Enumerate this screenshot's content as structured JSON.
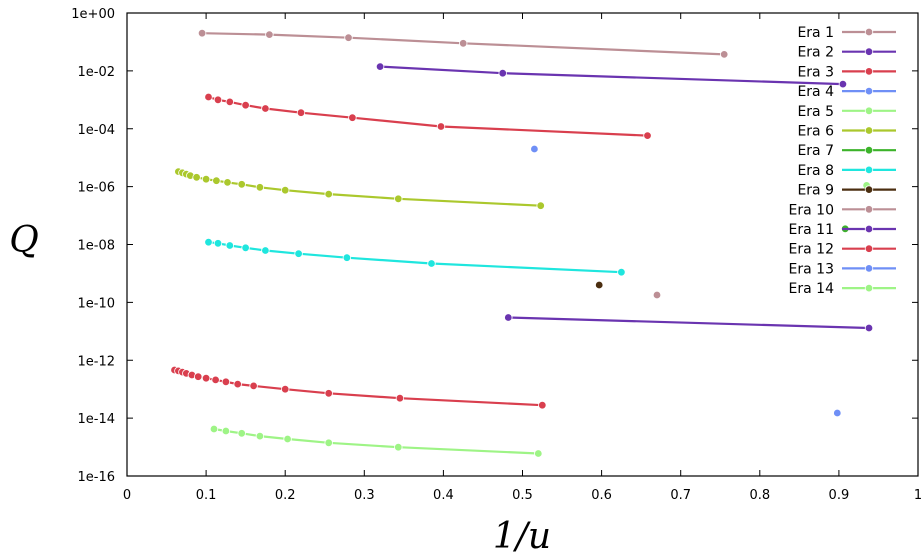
{
  "chart_data": {
    "type": "line",
    "title": "",
    "xlabel": "1/u",
    "ylabel": "Q",
    "xlim": [
      0,
      1
    ],
    "ylim_log10": [
      -16,
      0
    ],
    "y_scale": "log",
    "x_ticks": [
      0,
      0.1,
      0.2,
      0.3,
      0.4,
      0.5,
      0.6,
      0.7,
      0.8,
      0.9,
      1
    ],
    "x_tick_labels": [
      "0",
      "0.1",
      "0.2",
      "0.3",
      "0.4",
      "0.5",
      "0.6",
      "0.7",
      "0.8",
      "0.9",
      "1"
    ],
    "y_ticks_log10": [
      0,
      -2,
      -4,
      -6,
      -8,
      -10,
      -12,
      -14,
      -16
    ],
    "y_tick_labels": [
      "1e+00",
      "1e-02",
      "1e-04",
      "1e-06",
      "1e-08",
      "1e-10",
      "1e-12",
      "1e-14",
      "1e-16"
    ],
    "legend_position": "top-right",
    "series": [
      {
        "name": "Era 1",
        "color": "#bc8f95",
        "points": [
          [
            0.095,
            0.2
          ],
          [
            0.18,
            0.18
          ],
          [
            0.28,
            0.14
          ],
          [
            0.425,
            0.09
          ],
          [
            0.755,
            0.037
          ]
        ]
      },
      {
        "name": "Era 2",
        "color": "#6a34b0",
        "points": [
          [
            0.32,
            0.014
          ],
          [
            0.475,
            0.0083
          ],
          [
            0.905,
            0.0035
          ]
        ]
      },
      {
        "name": "Era 3",
        "color": "#d93f4e",
        "points": [
          [
            0.103,
            0.00125
          ],
          [
            0.115,
            0.001
          ],
          [
            0.13,
            0.00085
          ],
          [
            0.15,
            0.00065
          ],
          [
            0.175,
            0.0005
          ],
          [
            0.22,
            0.00036
          ],
          [
            0.285,
            0.00024
          ],
          [
            0.397,
            0.00012
          ],
          [
            0.658,
            5.8e-05
          ]
        ]
      },
      {
        "name": "Era 4",
        "color": "#6f8ff6",
        "points": [
          [
            0.515,
            2e-05
          ]
        ]
      },
      {
        "name": "Era 5",
        "color": "#9ef486",
        "points": [
          [
            0.935,
            1.1e-06
          ]
        ]
      },
      {
        "name": "Era 6",
        "color": "#abc82d",
        "points": [
          [
            0.065,
            3.3e-06
          ],
          [
            0.07,
            3e-06
          ],
          [
            0.075,
            2.7e-06
          ],
          [
            0.08,
            2.4e-06
          ],
          [
            0.088,
            2.1e-06
          ],
          [
            0.1,
            1.8e-06
          ],
          [
            0.113,
            1.6e-06
          ],
          [
            0.127,
            1.4e-06
          ],
          [
            0.145,
            1.2e-06
          ],
          [
            0.168,
            9.5e-07
          ],
          [
            0.2,
            7.5e-07
          ],
          [
            0.255,
            5.5e-07
          ],
          [
            0.343,
            3.8e-07
          ],
          [
            0.523,
            2.2e-07
          ]
        ]
      },
      {
        "name": "Era 7",
        "color": "#3cb32a",
        "points": [
          [
            0.908,
            3.5e-08
          ]
        ]
      },
      {
        "name": "Era 8",
        "color": "#1fe6de",
        "points": [
          [
            0.103,
            1.2e-08
          ],
          [
            0.115,
            1.1e-08
          ],
          [
            0.13,
            9.2e-09
          ],
          [
            0.15,
            7.7e-09
          ],
          [
            0.175,
            6.2e-09
          ],
          [
            0.217,
            4.8e-09
          ],
          [
            0.278,
            3.5e-09
          ],
          [
            0.385,
            2.2e-09
          ],
          [
            0.625,
            1.1e-09
          ]
        ]
      },
      {
        "name": "Era 9",
        "color": "#4b2e10",
        "points": [
          [
            0.597,
            4e-10
          ]
        ]
      },
      {
        "name": "Era 10",
        "color": "#bc8f95",
        "points": [
          [
            0.67,
            1.8e-10
          ]
        ]
      },
      {
        "name": "Era 11",
        "color": "#6a34b0",
        "points": [
          [
            0.482,
            3e-11
          ],
          [
            0.938,
            1.3e-11
          ]
        ]
      },
      {
        "name": "Era 12",
        "color": "#d93f4e",
        "points": [
          [
            0.06,
            4.6e-13
          ],
          [
            0.065,
            4.3e-13
          ],
          [
            0.07,
            3.9e-13
          ],
          [
            0.075,
            3.5e-13
          ],
          [
            0.082,
            3.1e-13
          ],
          [
            0.09,
            2.7e-13
          ],
          [
            0.1,
            2.4e-13
          ],
          [
            0.112,
            2.1e-13
          ],
          [
            0.125,
            1.8e-13
          ],
          [
            0.14,
            1.5e-13
          ],
          [
            0.16,
            1.3e-13
          ],
          [
            0.2,
            1e-13
          ],
          [
            0.255,
            7.2e-14
          ],
          [
            0.345,
            4.9e-14
          ],
          [
            0.525,
            2.8e-14
          ]
        ]
      },
      {
        "name": "Era 13",
        "color": "#6f8ff6",
        "points": [
          [
            0.898,
            1.5e-14
          ]
        ]
      },
      {
        "name": "Era 14",
        "color": "#9ef486",
        "points": [
          [
            0.11,
            4.2e-15
          ],
          [
            0.125,
            3.6e-15
          ],
          [
            0.145,
            3e-15
          ],
          [
            0.168,
            2.4e-15
          ],
          [
            0.203,
            1.9e-15
          ],
          [
            0.255,
            1.4e-15
          ],
          [
            0.343,
            9.9e-16
          ],
          [
            0.52,
            6e-16
          ]
        ]
      }
    ]
  }
}
